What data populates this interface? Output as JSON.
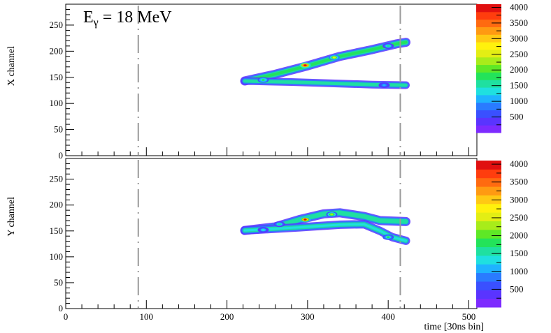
{
  "chart_data": {
    "type": "heatmap",
    "annotation": {
      "symbol": "E",
      "subscript": "γ",
      "text": " = 18 MeV"
    },
    "xlabel": "time [30ns bin]",
    "xlim": [
      0,
      510
    ],
    "x_ticks": [
      0,
      100,
      200,
      300,
      400,
      500
    ],
    "dashed_lines_x": [
      90,
      415
    ],
    "color_scale": {
      "range": [
        0,
        4100
      ],
      "ticks": [
        500,
        1000,
        1500,
        2000,
        2500,
        3000,
        3500,
        4000
      ],
      "colors": [
        "#7d2bff",
        "#5a34ff",
        "#3a50ff",
        "#2a7bff",
        "#1fb3ff",
        "#1fe0e0",
        "#1fe0a0",
        "#23e35a",
        "#5ee826",
        "#a8ec1a",
        "#e3ee14",
        "#fff10d",
        "#ffc914",
        "#ff9a12",
        "#ff6a10",
        "#ff3d0e",
        "#e01010"
      ]
    },
    "panels": [
      {
        "ylabel": "X channel",
        "ylim": [
          0,
          290
        ],
        "y_ticks": [
          0,
          50,
          100,
          150,
          200,
          250
        ],
        "bands": [
          {
            "points": [
              [
                222,
                143
              ],
              [
                260,
                156
              ],
              [
                300,
                172
              ],
              [
                340,
                190
              ],
              [
                380,
                203
              ],
              [
                410,
                214
              ],
              [
                422,
                217
              ]
            ],
            "width": 7,
            "peak": 3200
          },
          {
            "points": [
              [
                222,
                143
              ],
              [
                280,
                141
              ],
              [
                340,
                138
              ],
              [
                380,
                136
              ],
              [
                422,
                135
              ]
            ],
            "width": 5,
            "peak": 2700
          }
        ],
        "hotspots": [
          {
            "x": 297,
            "y": 173,
            "v": 4100
          },
          {
            "x": 333,
            "y": 188,
            "v": 2600
          },
          {
            "x": 400,
            "y": 210,
            "v": 1600
          },
          {
            "x": 245,
            "y": 145,
            "v": 1800
          },
          {
            "x": 395,
            "y": 135,
            "v": 1200
          }
        ]
      },
      {
        "ylabel": "Y channel",
        "ylim": [
          0,
          290
        ],
        "y_ticks": [
          0,
          50,
          100,
          150,
          200,
          250
        ],
        "bands": [
          {
            "points": [
              [
                222,
                151
              ],
              [
                260,
                158
              ],
              [
                290,
                172
              ],
              [
                320,
                183
              ],
              [
                340,
                185
              ],
              [
                370,
                178
              ],
              [
                390,
                170
              ],
              [
                422,
                168
              ]
            ],
            "width": 7,
            "peak": 3000
          },
          {
            "points": [
              [
                222,
                151
              ],
              [
                290,
                157
              ],
              [
                340,
                162
              ],
              [
                370,
                163
              ],
              [
                390,
                150
              ],
              [
                405,
                138
              ],
              [
                422,
                131
              ]
            ],
            "width": 6,
            "peak": 2500
          }
        ],
        "hotspots": [
          {
            "x": 297,
            "y": 172,
            "v": 3900
          },
          {
            "x": 330,
            "y": 182,
            "v": 2200
          },
          {
            "x": 265,
            "y": 163,
            "v": 1600
          },
          {
            "x": 400,
            "y": 138,
            "v": 1700
          },
          {
            "x": 245,
            "y": 152,
            "v": 1300
          }
        ]
      }
    ]
  }
}
